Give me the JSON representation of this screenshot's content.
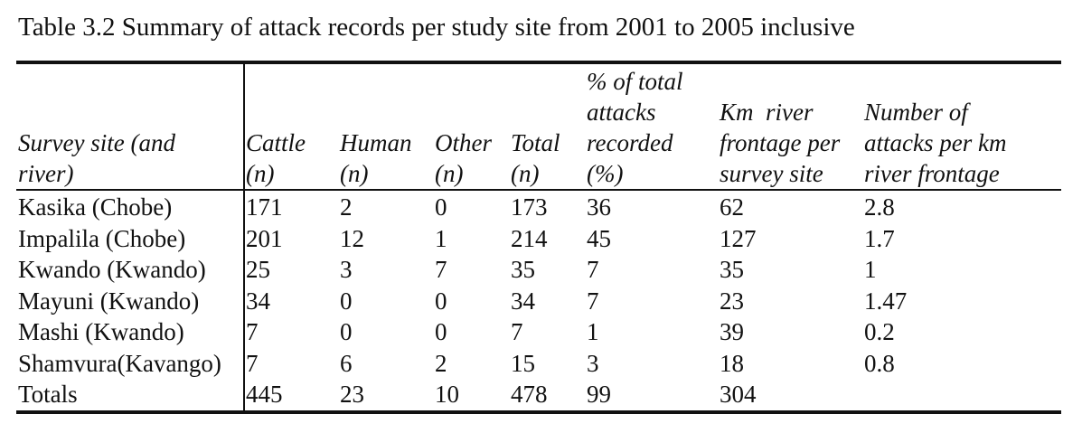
{
  "caption": "Table 3.2 Summary of attack records per study site from 2001 to 2005 inclusive",
  "header": {
    "site": [
      "Survey site (and",
      "river)"
    ],
    "cattle": [
      "Cattle",
      "(n)"
    ],
    "human": [
      "Human",
      "(n)"
    ],
    "other": [
      "Other",
      "(n)"
    ],
    "total": [
      "Total",
      "(n)"
    ],
    "pct": [
      "% of total",
      "attacks",
      "recorded",
      "(%)"
    ],
    "km": [
      "Km  river",
      "frontage per",
      "survey site"
    ],
    "perkm": [
      "Number of",
      "attacks per km",
      "river frontage"
    ]
  },
  "rows": [
    {
      "site": "Kasika (Chobe)",
      "cattle": "171",
      "human": "2",
      "other": "0",
      "total": "173",
      "pct": "36",
      "km": "62",
      "perkm": "2.8"
    },
    {
      "site": "Impalila (Chobe)",
      "cattle": "201",
      "human": "12",
      "other": "1",
      "total": "214",
      "pct": "45",
      "km": "127",
      "perkm": "1.7"
    },
    {
      "site": "Kwando (Kwando)",
      "cattle": "25",
      "human": "3",
      "other": "7",
      "total": "35",
      "pct": "7",
      "km": "35",
      "perkm": "1"
    },
    {
      "site": "Mayuni (Kwando)",
      "cattle": "34",
      "human": "0",
      "other": "0",
      "total": "34",
      "pct": "7",
      "km": "23",
      "perkm": "1.47"
    },
    {
      "site": "Mashi (Kwando)",
      "cattle": "7",
      "human": "0",
      "other": "0",
      "total": "7",
      "pct": "1",
      "km": "39",
      "perkm": "0.2"
    },
    {
      "site": "Shamvura(Kavango)",
      "cattle": "7",
      "human": "6",
      "other": "2",
      "total": "15",
      "pct": "3",
      "km": "18",
      "perkm": "0.8"
    },
    {
      "site": "Totals",
      "cattle": "445",
      "human": "23",
      "other": "10",
      "total": "478",
      "pct": "99",
      "km": "304",
      "perkm": ""
    }
  ]
}
